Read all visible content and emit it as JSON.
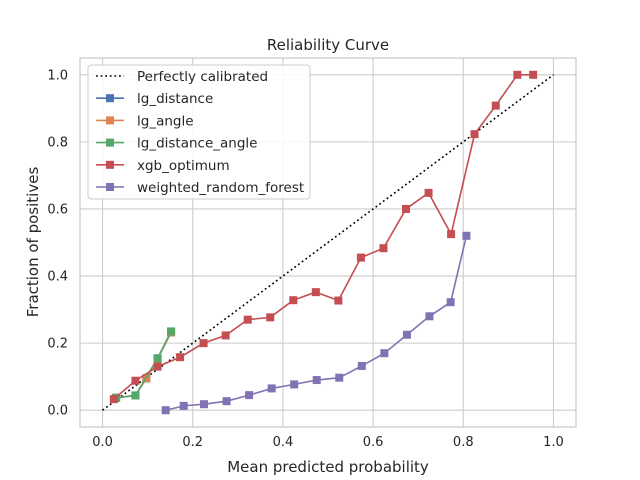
{
  "chart_data": {
    "type": "line",
    "title": "Reliability Curve",
    "xlabel": "Mean predicted probability",
    "ylabel": "Fraction of positives",
    "xlim": [
      -0.05,
      1.05
    ],
    "ylim": [
      -0.05,
      1.05
    ],
    "xticks": [
      0.0,
      0.2,
      0.4,
      0.6,
      0.8,
      1.0
    ],
    "xtick_labels": [
      "0.0",
      "0.2",
      "0.4",
      "0.6",
      "0.8",
      "1.0"
    ],
    "yticks": [
      0.0,
      0.2,
      0.4,
      0.6,
      0.8,
      1.0
    ],
    "ytick_labels": [
      "0.0",
      "0.2",
      "0.4",
      "0.6",
      "0.8",
      "1.0"
    ],
    "grid": true,
    "legend_position": "upper-left",
    "reference_line": {
      "name": "Perfectly calibrated",
      "x": [
        0,
        1
      ],
      "y": [
        0,
        1
      ],
      "color": "#000000",
      "style": "dotted"
    },
    "series": [
      {
        "name": "lg_distance",
        "color": "#4c72b0",
        "marker": "square",
        "x": [
          0.03,
          0.073,
          0.097,
          0.122,
          0.152
        ],
        "y": [
          0.037,
          0.044,
          0.095,
          0.153,
          0.232
        ]
      },
      {
        "name": "lg_angle",
        "color": "#dd8452",
        "marker": "square",
        "x": [
          0.03,
          0.073,
          0.097,
          0.122,
          0.152
        ],
        "y": [
          0.037,
          0.044,
          0.095,
          0.153,
          0.232
        ]
      },
      {
        "name": "lg_distance_angle",
        "color": "#55a868",
        "marker": "square",
        "x": [
          0.03,
          0.073,
          0.122,
          0.152
        ],
        "y": [
          0.037,
          0.044,
          0.155,
          0.235
        ]
      },
      {
        "name": "xgb_optimum",
        "color": "#c44e52",
        "marker": "square",
        "x": [
          0.025,
          0.073,
          0.122,
          0.172,
          0.224,
          0.273,
          0.322,
          0.372,
          0.423,
          0.473,
          0.523,
          0.573,
          0.623,
          0.673,
          0.723,
          0.773,
          0.825,
          0.872,
          0.92,
          0.955
        ],
        "y": [
          0.033,
          0.088,
          0.13,
          0.158,
          0.2,
          0.223,
          0.27,
          0.277,
          0.328,
          0.352,
          0.327,
          0.455,
          0.483,
          0.6,
          0.648,
          0.525,
          0.823,
          0.908,
          1.0,
          1.0
        ]
      },
      {
        "name": "weighted_random_forest",
        "color": "#8172b3",
        "marker": "square",
        "x": [
          0.14,
          0.18,
          0.225,
          0.275,
          0.325,
          0.375,
          0.425,
          0.475,
          0.525,
          0.575,
          0.625,
          0.675,
          0.725,
          0.772,
          0.807
        ],
        "y": [
          0.0,
          0.013,
          0.018,
          0.027,
          0.045,
          0.065,
          0.077,
          0.09,
          0.097,
          0.132,
          0.17,
          0.225,
          0.28,
          0.322,
          0.52
        ]
      }
    ]
  }
}
